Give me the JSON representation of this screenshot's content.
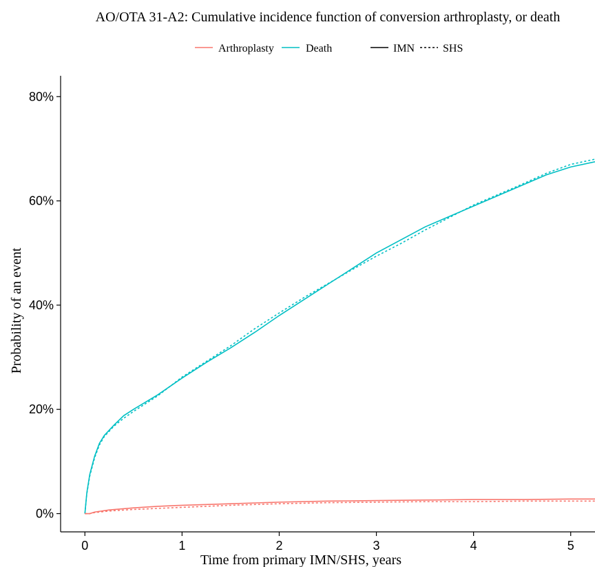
{
  "chart_data": {
    "type": "line",
    "title": "AO/OTA 31-A2: Cumulative incidence function of conversion arthroplasty, or death",
    "xlabel": "Time from primary IMN/SHS, years",
    "ylabel": "Probability of an event",
    "xlim": [
      -0.25,
      5.25
    ],
    "ylim": [
      -0.035,
      0.84
    ],
    "x_ticks": [
      0,
      1,
      2,
      3,
      4,
      5
    ],
    "x_tick_labels": [
      "0",
      "1",
      "2",
      "3",
      "4",
      "5"
    ],
    "y_ticks": [
      0,
      0.2,
      0.4,
      0.6,
      0.8
    ],
    "y_tick_labels": [
      "0%",
      "20%",
      "40%",
      "60%",
      "80%"
    ],
    "grid": false,
    "legend": {
      "position": "top",
      "colour_entries": [
        {
          "label": "Arthroplasty",
          "color": "#F8766D"
        },
        {
          "label": "Death",
          "color": "#00BFC4"
        }
      ],
      "linetype_entries": [
        {
          "label": "IMN",
          "style": "solid"
        },
        {
          "label": "SHS",
          "style": "dotted"
        }
      ]
    },
    "series": [
      {
        "name": "Death",
        "group": "IMN",
        "event": "Death",
        "color": "#00BFC4",
        "linestyle": "solid",
        "x": [
          0,
          0.02,
          0.05,
          0.1,
          0.15,
          0.2,
          0.3,
          0.4,
          0.5,
          0.75,
          1.0,
          1.25,
          1.5,
          1.75,
          2.0,
          2.25,
          2.5,
          2.75,
          3.0,
          3.25,
          3.5,
          3.75,
          4.0,
          4.25,
          4.5,
          4.75,
          5.0,
          5.25
        ],
        "y": [
          0,
          0.04,
          0.075,
          0.11,
          0.135,
          0.15,
          0.17,
          0.188,
          0.2,
          0.228,
          0.26,
          0.29,
          0.318,
          0.348,
          0.38,
          0.41,
          0.44,
          0.47,
          0.5,
          0.525,
          0.55,
          0.57,
          0.59,
          0.61,
          0.63,
          0.65,
          0.665,
          0.675
        ]
      },
      {
        "name": "Death",
        "group": "SHS",
        "event": "Death",
        "color": "#00BFC4",
        "linestyle": "dotted",
        "x": [
          0,
          0.02,
          0.05,
          0.1,
          0.15,
          0.2,
          0.3,
          0.4,
          0.5,
          0.75,
          1.0,
          1.25,
          1.5,
          1.75,
          2.0,
          2.25,
          2.5,
          2.75,
          3.0,
          3.25,
          3.5,
          3.75,
          4.0,
          4.25,
          4.5,
          4.75,
          5.0,
          5.25
        ],
        "y": [
          0,
          0.038,
          0.072,
          0.107,
          0.132,
          0.148,
          0.168,
          0.183,
          0.196,
          0.226,
          0.262,
          0.292,
          0.322,
          0.355,
          0.385,
          0.414,
          0.441,
          0.468,
          0.494,
          0.518,
          0.544,
          0.568,
          0.592,
          0.612,
          0.632,
          0.653,
          0.67,
          0.68
        ]
      },
      {
        "name": "Arthroplasty",
        "group": "IMN",
        "event": "Arthroplasty",
        "color": "#F8766D",
        "linestyle": "solid",
        "x": [
          0,
          0.05,
          0.1,
          0.25,
          0.5,
          0.75,
          1.0,
          1.5,
          2.0,
          2.5,
          3.0,
          3.5,
          4.0,
          4.5,
          5.0,
          5.25
        ],
        "y": [
          0,
          0.0,
          0.003,
          0.007,
          0.011,
          0.014,
          0.016,
          0.019,
          0.022,
          0.024,
          0.025,
          0.026,
          0.027,
          0.027,
          0.028,
          0.028
        ]
      },
      {
        "name": "Arthroplasty",
        "group": "SHS",
        "event": "Arthroplasty",
        "color": "#F8766D",
        "linestyle": "dotted",
        "x": [
          0,
          0.05,
          0.1,
          0.25,
          0.5,
          0.75,
          1.0,
          1.5,
          2.0,
          2.5,
          3.0,
          3.5,
          4.0,
          4.5,
          5.0,
          5.25
        ],
        "y": [
          0,
          0.0,
          0.002,
          0.005,
          0.008,
          0.01,
          0.012,
          0.016,
          0.019,
          0.021,
          0.022,
          0.023,
          0.023,
          0.024,
          0.024,
          0.024
        ]
      }
    ]
  }
}
